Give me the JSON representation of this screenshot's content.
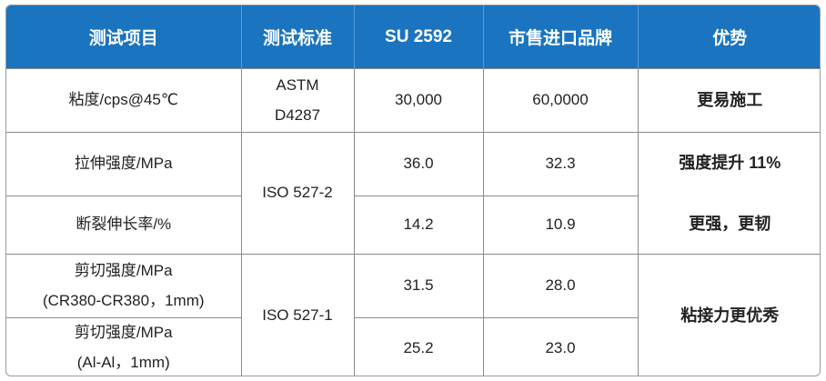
{
  "headers": [
    "测试项目",
    "测试标准",
    "SU 2592",
    "市售进口品牌",
    "优势"
  ],
  "rows": {
    "r1": {
      "item": "粘度/cps@45℃",
      "standard_line1": "ASTM",
      "standard_line2": "D4287",
      "su": "30,000",
      "market": "60,0000",
      "adv": "更易施工"
    },
    "r2": {
      "item": "拉伸强度/MPa",
      "su": "36.0",
      "market": "32.3",
      "adv": "强度提升 11%"
    },
    "r3": {
      "item": "断裂伸长率/%",
      "su": "14.2",
      "market": "10.9",
      "adv": "更强，更韧"
    },
    "std_23": "ISO 527-2",
    "r4": {
      "item_line1": "剪切强度/MPa",
      "item_line2": "(CR380-CR380，1mm)",
      "su": "31.5",
      "market": "28.0"
    },
    "r5": {
      "item_line1": "剪切强度/MPa",
      "item_line2": "(Al-Al，1mm)",
      "su": "25.2",
      "market": "23.0"
    },
    "std_45": "ISO 527-1",
    "adv_45": "粘接力更优秀"
  }
}
